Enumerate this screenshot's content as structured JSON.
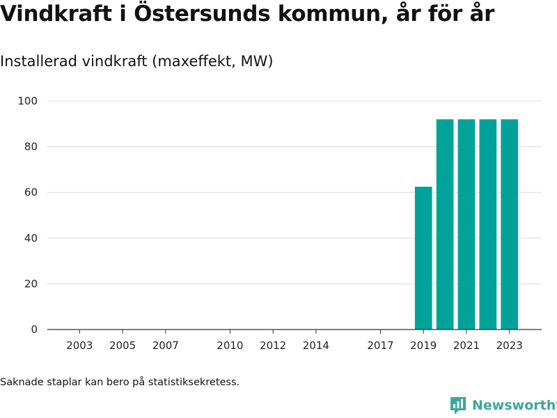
{
  "header": {
    "title": "Vindkraft i Östersunds kommun, år för år",
    "subtitle": "Installerad vindkraft (maxeffekt, MW)"
  },
  "footnote": "Saknade staplar kan bero på statistiksekretess.",
  "brand": {
    "name": "Newsworthy",
    "color": "#3aa89c"
  },
  "chart_data": {
    "type": "bar",
    "x": [
      2019,
      2020,
      2021,
      2022,
      2023
    ],
    "values": [
      62.5,
      92,
      92,
      92,
      92
    ],
    "x_ticks": [
      2003,
      2005,
      2007,
      2010,
      2012,
      2014,
      2017,
      2019,
      2021,
      2023
    ],
    "y_ticks": [
      0,
      20,
      40,
      60,
      80,
      100
    ],
    "xlim": [
      2001.5,
      2024.5
    ],
    "ylim": [
      0,
      100
    ],
    "bar_color": "#00a39a",
    "grid": true
  }
}
